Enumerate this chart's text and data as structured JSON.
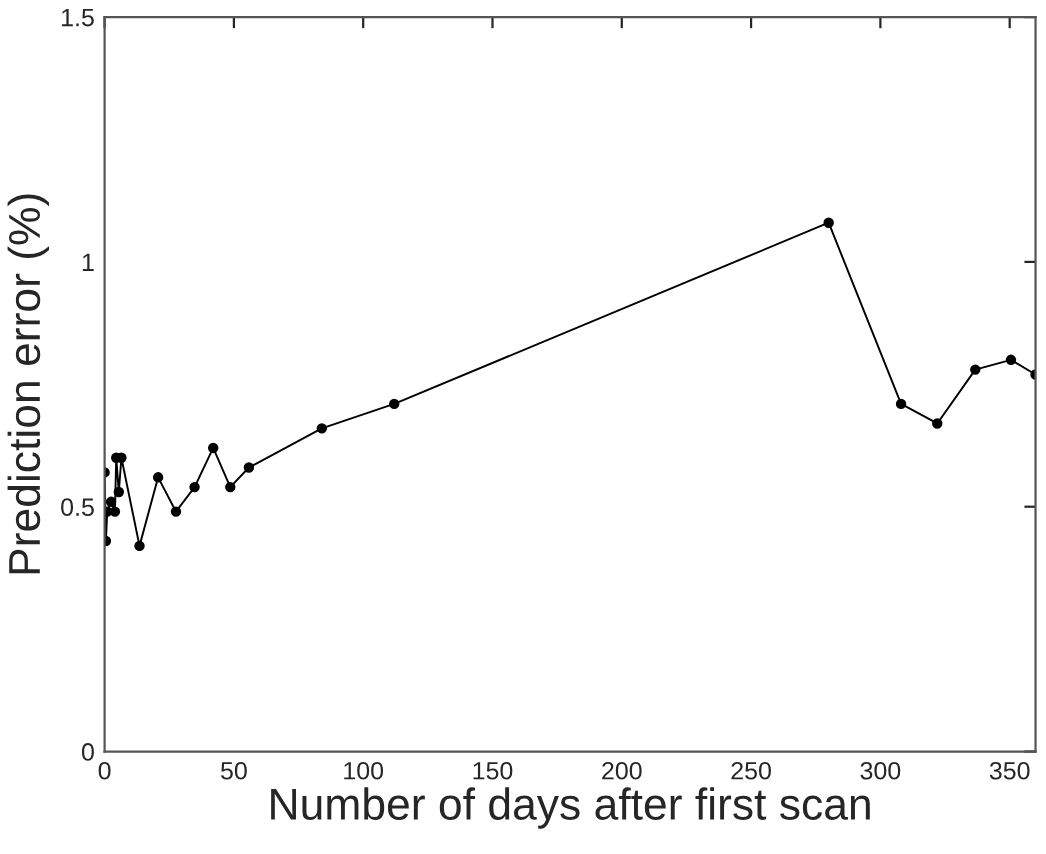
{
  "chart_data": {
    "type": "line",
    "xlabel": "Number of days after first scan",
    "ylabel": "Prediction error (%)",
    "series": [
      {
        "color": "#000000",
        "x": [
          0,
          0.5,
          1,
          2.5,
          4,
          4.5,
          5.5,
          6.5,
          13.5,
          20.7,
          27.6,
          34.8,
          42,
          48.6,
          55.8,
          84,
          112,
          280,
          308,
          322,
          336.7,
          350.5,
          360
        ],
        "values": [
          0.57,
          0.43,
          0.49,
          0.51,
          0.49,
          0.6,
          0.53,
          0.6,
          0.42,
          0.56,
          0.49,
          0.54,
          0.62,
          0.54,
          0.58,
          0.66,
          0.71,
          1.08,
          0.71,
          0.67,
          0.78,
          0.8,
          0.77
        ]
      }
    ],
    "marker": "circle",
    "line_style": "solid",
    "grid": false,
    "xlim": [
      0,
      360
    ],
    "xticks": [
      0,
      50,
      100,
      150,
      200,
      250,
      300,
      350
    ],
    "ylim": [
      0,
      1.5
    ],
    "yticks": [
      0,
      {
        "value": 0.5,
        "label": "0.5"
      },
      1,
      1.5
    ]
  }
}
